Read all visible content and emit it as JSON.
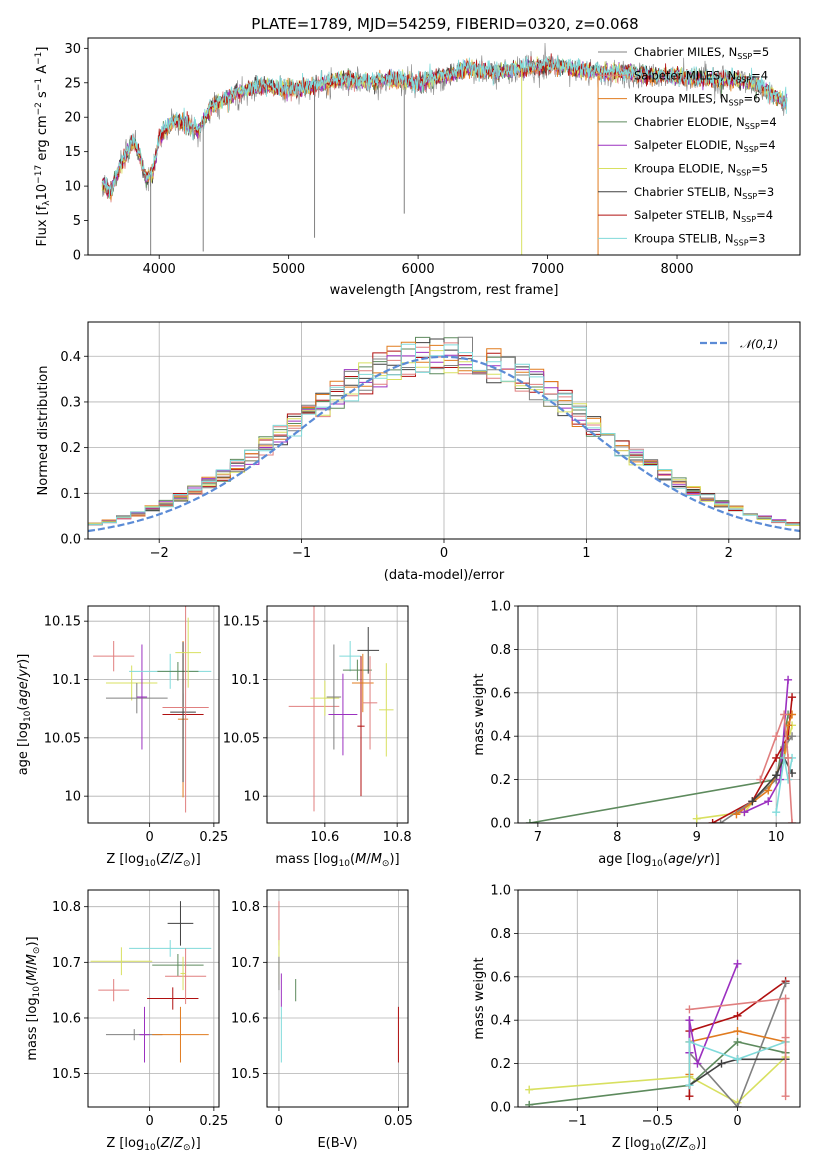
{
  "figure_title": "PLATE=1789, MJD=54259, FIBERID=0320, z=0.068",
  "models": [
    {
      "key": "ch_mi",
      "label": "Chabrier MILES, N_SSP=5",
      "color": "#808080"
    },
    {
      "key": "sa_mi",
      "label": "Salpeter MILES, N_SSP=4",
      "color": "#e07f7f"
    },
    {
      "key": "kr_mi",
      "label": "Kroupa MILES, N_SSP=6",
      "color": "#e07b1f"
    },
    {
      "key": "ch_el",
      "label": "Chabrier ELODIE, N_SSP=4",
      "color": "#5d8a5d"
    },
    {
      "key": "sa_el",
      "label": "Salpeter ELODIE, N_SSP=4",
      "color": "#9b30c0"
    },
    {
      "key": "kr_el",
      "label": "Kroupa ELODIE, N_SSP=5",
      "color": "#d8e060"
    },
    {
      "key": "ch_st",
      "label": "Chabrier STELIB, N_SSP=3",
      "color": "#404040"
    },
    {
      "key": "sa_st",
      "label": "Salpeter STELIB, N_SSP=4",
      "color": "#b01010"
    },
    {
      "key": "kr_st",
      "label": "Kroupa STELIB, N_SSP=3",
      "color": "#80dada"
    }
  ],
  "chart_data": [
    {
      "id": "spectrum",
      "type": "line",
      "title": "PLATE=1789, MJD=54259, FIBERID=0320, z=0.068",
      "xlabel": "wavelength [Angstrom, rest frame]",
      "ylabel": "Flux [f_λ 10^-17 erg cm^-2 s^-1 A^-1]",
      "xlim": [
        3450,
        8950
      ],
      "ylim": [
        0,
        31.5
      ],
      "xticks": [
        4000,
        5000,
        6000,
        7000,
        8000
      ],
      "yticks": [
        0,
        5,
        10,
        15,
        20,
        25,
        30
      ],
      "continuum": {
        "x": [
          3560,
          3620,
          3700,
          3800,
          3850,
          3900,
          3950,
          4000,
          4100,
          4200,
          4300,
          4400,
          4600,
          4800,
          5000,
          5200,
          5400,
          5600,
          5800,
          6000,
          6200,
          6400,
          6600,
          6800,
          7000,
          7200,
          7400,
          7600,
          7800,
          8000,
          8200,
          8400,
          8600,
          8850
        ],
        "y": [
          10.5,
          9.0,
          13.0,
          16.5,
          14.5,
          11.0,
          12.0,
          17.0,
          19.5,
          19.0,
          18.0,
          21.5,
          23.5,
          24.5,
          24.0,
          24.5,
          25.5,
          25.0,
          25.5,
          25.0,
          26.0,
          27.0,
          26.5,
          27.0,
          27.5,
          27.0,
          26.5,
          26.5,
          26.0,
          26.0,
          25.5,
          25.5,
          25.0,
          22.0
        ]
      },
      "absorption_lines": [
        {
          "x": 3934,
          "y": 0.0
        },
        {
          "x": 4340,
          "y": 0.5
        },
        {
          "x": 5200,
          "y": 2.5
        },
        {
          "x": 5893,
          "y": 6.0
        },
        {
          "x": 6800,
          "y": 0.0
        },
        {
          "x": 7390,
          "y": 0.0
        }
      ],
      "legend": "right"
    },
    {
      "id": "residuals",
      "type": "line",
      "xlabel": "(data-model)/error",
      "ylabel": "Normed distribution",
      "xlim": [
        -2.5,
        2.5
      ],
      "ylim": [
        0,
        0.475
      ],
      "xticks": [
        -2,
        -1,
        0,
        1,
        2
      ],
      "yticks": [
        0.0,
        0.1,
        0.2,
        0.3,
        0.4
      ],
      "bins": {
        "start": -2.5,
        "width": 0.1,
        "count": 50
      },
      "gaussian": {
        "label": "𝒩(0,1)",
        "color": "#5b8bd6"
      },
      "legend": "top-right"
    },
    {
      "id": "age_vs_Z",
      "type": "scatter",
      "xlabel": "Z [log10(Z/Z⊙)]",
      "ylabel": "age  [log10(age/yr)]",
      "xlim": [
        -0.24,
        0.27
      ],
      "ylim": [
        9.977,
        10.163
      ],
      "xticks": [
        0.0,
        0.25
      ],
      "yticks": [
        10.0,
        10.05,
        10.1,
        10.15
      ],
      "points": [
        {
          "x": -0.14,
          "xe": 0.08,
          "y": 10.12,
          "ye": 0.013
        },
        {
          "x": -0.07,
          "xe": 0.1,
          "y": 10.097,
          "ye": 0.015
        },
        {
          "x": -0.05,
          "xe": 0.12,
          "y": 10.084,
          "ye": 0.013
        },
        {
          "x": -0.03,
          "xe": 0.02,
          "y": 10.085,
          "ye": 0.045
        },
        {
          "x": 0.08,
          "xe": 0.16,
          "y": 10.107,
          "ye": 0.015
        },
        {
          "x": 0.11,
          "xe": 0.08,
          "y": 10.107,
          "ye": 0.008
        },
        {
          "x": 0.13,
          "xe": 0.08,
          "y": 10.07,
          "ye": 0.018
        },
        {
          "x": 0.13,
          "xe": 0.02,
          "y": 10.066,
          "ye": 0.067
        },
        {
          "x": 0.13,
          "xe": 0.05,
          "y": 10.072,
          "ye": 0.06
        },
        {
          "x": 0.14,
          "xe": 0.09,
          "y": 10.076,
          "ye": 0.09
        },
        {
          "x": 0.15,
          "xe": 0.05,
          "y": 10.123,
          "ye": 0.03
        }
      ]
    },
    {
      "id": "age_vs_mass",
      "type": "scatter",
      "xlabel": "mass [log10(M/M⊙)]",
      "ylabel": "",
      "xlim": [
        10.44,
        10.83
      ],
      "ylim": [
        9.977,
        10.163
      ],
      "xticks": [
        10.6,
        10.8
      ],
      "yticks": [
        10.0,
        10.05,
        10.1,
        10.15
      ],
      "points": [
        {
          "x": 10.57,
          "xe": 0.07,
          "y": 10.077,
          "ye": 0.09
        },
        {
          "x": 10.6,
          "xe": 0.04,
          "y": 10.084,
          "ye": 0.015
        },
        {
          "x": 10.625,
          "xe": 0.02,
          "y": 10.085,
          "ye": 0.045
        },
        {
          "x": 10.65,
          "xe": 0.04,
          "y": 10.07,
          "ye": 0.035
        },
        {
          "x": 10.67,
          "xe": 0.03,
          "y": 10.12,
          "ye": 0.013
        },
        {
          "x": 10.69,
          "xe": 0.04,
          "y": 10.108,
          "ye": 0.009
        },
        {
          "x": 10.7,
          "xe": 0.01,
          "y": 10.06,
          "ye": 0.06
        },
        {
          "x": 10.705,
          "xe": 0.03,
          "y": 10.097,
          "ye": 0.025
        },
        {
          "x": 10.72,
          "xe": 0.03,
          "y": 10.125,
          "ye": 0.02
        },
        {
          "x": 10.725,
          "xe": 0.02,
          "y": 10.08,
          "ye": 0.04
        },
        {
          "x": 10.77,
          "xe": 0.02,
          "y": 10.074,
          "ye": 0.04
        }
      ]
    },
    {
      "id": "weight_vs_age",
      "type": "line",
      "xlabel": "age  [log10(age/yr)]",
      "ylabel": "mass weight",
      "xlim": [
        6.75,
        10.3
      ],
      "ylim": [
        0,
        1.0
      ],
      "xticks": [
        7,
        8,
        9,
        10
      ],
      "yticks": [
        0.0,
        0.2,
        0.4,
        0.6,
        0.8,
        1.0
      ],
      "series": [
        {
          "x": [
            6.9,
            10.0,
            10.15
          ],
          "y": [
            0.0,
            0.2,
            0.5
          ]
        },
        {
          "x": [
            9.0,
            9.6,
            10.0,
            10.1,
            10.2
          ],
          "y": [
            0.02,
            0.05,
            0.22,
            0.3,
            0.45
          ]
        },
        {
          "x": [
            9.2,
            9.7,
            10.0,
            10.15,
            10.2
          ],
          "y": [
            0.0,
            0.1,
            0.3,
            0.4,
            0.58
          ]
        },
        {
          "x": [
            9.3,
            9.7,
            10.0,
            10.1,
            10.2
          ],
          "y": [
            0.0,
            0.1,
            0.2,
            0.35,
            0.4
          ]
        },
        {
          "x": [
            9.5,
            9.9,
            10.1,
            10.15,
            10.2
          ],
          "y": [
            0.04,
            0.15,
            0.3,
            0.45,
            0.5
          ]
        },
        {
          "x": [
            9.6,
            9.9,
            10.05,
            10.15
          ],
          "y": [
            0.05,
            0.1,
            0.2,
            0.66
          ]
        },
        {
          "x": [
            9.7,
            10.0,
            10.1,
            10.2
          ],
          "y": [
            0.1,
            0.22,
            0.3,
            0.23
          ]
        },
        {
          "x": [
            10.0,
            10.1,
            10.15,
            10.2
          ],
          "y": [
            0.05,
            0.3,
            0.2,
            0.3
          ]
        },
        {
          "x": [
            9.8,
            10.0,
            10.1,
            10.15,
            10.2
          ],
          "y": [
            0.2,
            0.4,
            0.5,
            0.3,
            0.0
          ]
        }
      ]
    },
    {
      "id": "mass_vs_Z",
      "type": "scatter",
      "xlabel": "Z [log10(Z/Z⊙)]",
      "ylabel": "mass [log10(M/M⊙)]",
      "xlim": [
        -0.24,
        0.27
      ],
      "ylim": [
        10.44,
        10.83
      ],
      "xticks": [
        0.0,
        0.25
      ],
      "yticks": [
        10.5,
        10.6,
        10.7,
        10.8
      ],
      "points": [
        {
          "x": -0.14,
          "xe": 0.06,
          "y": 10.65,
          "ye": 0.02
        },
        {
          "x": -0.11,
          "xe": 0.12,
          "y": 10.702,
          "ye": 0.025
        },
        {
          "x": -0.06,
          "xe": 0.11,
          "y": 10.57,
          "ye": 0.01
        },
        {
          "x": -0.02,
          "xe": 0.02,
          "y": 10.57,
          "ye": 0.05
        },
        {
          "x": 0.08,
          "xe": 0.16,
          "y": 10.725,
          "ye": 0.015
        },
        {
          "x": 0.11,
          "xe": 0.1,
          "y": 10.695,
          "ye": 0.02
        },
        {
          "x": 0.09,
          "xe": 0.1,
          "y": 10.635,
          "ye": 0.02
        },
        {
          "x": 0.12,
          "xe": 0.11,
          "y": 10.57,
          "ye": 0.05
        },
        {
          "x": 0.12,
          "xe": 0.05,
          "y": 10.77,
          "ye": 0.04
        },
        {
          "x": 0.14,
          "xe": 0.08,
          "y": 10.675,
          "ye": 0.05
        },
        {
          "x": 0.13,
          "xe": 0.01,
          "y": 10.68,
          "ye": 0.03
        }
      ]
    },
    {
      "id": "mass_vs_EBV",
      "type": "scatter",
      "xlabel": "E(B-V)",
      "ylabel": "",
      "xlim": [
        -0.005,
        0.054
      ],
      "ylim": [
        10.44,
        10.83
      ],
      "xticks": [
        0.0,
        0.05
      ],
      "yticks": [
        10.5,
        10.6,
        10.7,
        10.8
      ],
      "points": [
        {
          "x": 0.0,
          "y": 10.77,
          "ye": 0.04
        },
        {
          "x": 0.0,
          "y": 10.7,
          "ye": 0.04
        },
        {
          "x": 0.0,
          "y": 10.68,
          "ye": 0.03
        },
        {
          "x": 0.001,
          "y": 10.65,
          "ye": 0.03
        },
        {
          "x": 0.001,
          "y": 10.57,
          "ye": 0.05
        },
        {
          "x": 0.007,
          "y": 10.65,
          "ye": 0.02
        },
        {
          "x": 0.05,
          "y": 10.57,
          "ye": 0.05
        }
      ]
    },
    {
      "id": "weight_vs_Z",
      "type": "line",
      "xlabel": "Z [log10(Z/Z⊙)]",
      "ylabel": "mass weight",
      "xlim": [
        -1.37,
        0.39
      ],
      "ylim": [
        0,
        1.0
      ],
      "xticks": [
        -1.0,
        -0.5,
        0.0
      ],
      "yticks": [
        0.0,
        0.2,
        0.4,
        0.6,
        0.8,
        1.0
      ],
      "series": [
        {
          "x": [
            -1.3,
            -0.3,
            0.0,
            0.3
          ],
          "y": [
            0.01,
            0.1,
            0.3,
            0.25
          ]
        },
        {
          "x": [
            -1.3,
            -0.3,
            0.0,
            0.3
          ],
          "y": [
            0.08,
            0.14,
            0.02,
            0.23
          ]
        },
        {
          "x": [
            -0.3,
            -0.3,
            0.0,
            0.3
          ],
          "y": [
            0.05,
            0.35,
            0.42,
            0.58
          ]
        },
        {
          "x": [
            -0.3,
            -0.3,
            0.0,
            0.3
          ],
          "y": [
            0.4,
            0.25,
            0.0,
            0.57
          ]
        },
        {
          "x": [
            -0.3,
            -0.3,
            0.0,
            0.3
          ],
          "y": [
            0.15,
            0.3,
            0.35,
            0.3
          ]
        },
        {
          "x": [
            -0.3,
            -0.3,
            -0.25,
            0.0
          ],
          "y": [
            0.25,
            0.4,
            0.2,
            0.66
          ]
        },
        {
          "x": [
            -0.3,
            -0.1,
            0.0,
            0.3
          ],
          "y": [
            0.1,
            0.2,
            0.22,
            0.22
          ]
        },
        {
          "x": [
            -0.3,
            -0.3,
            0.0,
            0.3
          ],
          "y": [
            0.1,
            0.3,
            0.22,
            0.3
          ]
        },
        {
          "x": [
            -0.3,
            0.3,
            0.3,
            0.3
          ],
          "y": [
            0.45,
            0.5,
            0.32,
            0.05
          ]
        }
      ]
    }
  ]
}
